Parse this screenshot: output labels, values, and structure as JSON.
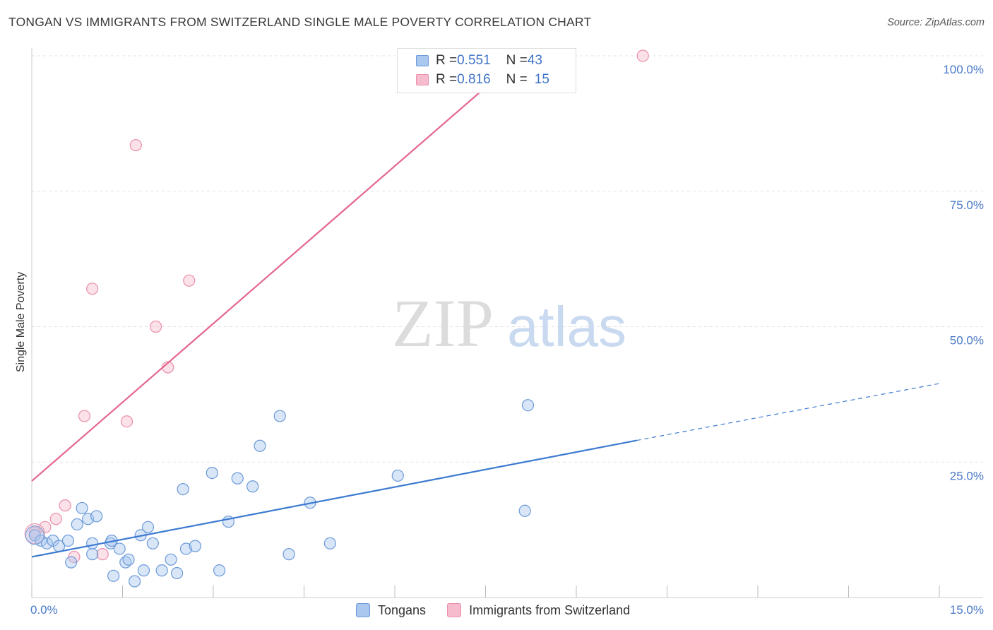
{
  "title": "TONGAN VS IMMIGRANTS FROM SWITZERLAND SINGLE MALE POVERTY CORRELATION CHART",
  "source": "Source: ZipAtlas.com",
  "watermark": {
    "zip": "ZIP",
    "atlas": "atlas"
  },
  "legend_top": {
    "rows": [
      {
        "r_label": "R = ",
        "r_value": "0.551",
        "n_label": "N = ",
        "n_value": "43"
      },
      {
        "r_label": "R = ",
        "r_value": "0.816",
        "n_label": "N = ",
        "n_value": "15"
      }
    ]
  },
  "legend_bottom": [
    {
      "label": "Tongans"
    },
    {
      "label": "Immigrants from Switzerland"
    }
  ],
  "colors": {
    "blue_fill": "#a9c7ef",
    "blue_stroke": "#6c9ad8",
    "blue_line": "#3c7ad1",
    "pink_fill": "#f6bccd",
    "pink_stroke": "#eb8fab",
    "pink_line": "#e4668e",
    "tick": "#4a7ac9",
    "grid": "#e3e3e3"
  },
  "chart_data": {
    "type": "scatter",
    "title": "TONGAN VS IMMIGRANTS FROM SWITZERLAND SINGLE MALE POVERTY CORRELATION CHART",
    "xlabel": "",
    "ylabel": "Single Male Poverty",
    "xlim": [
      0,
      15
    ],
    "ylim": [
      0,
      100
    ],
    "x_ticks": [
      "0.0%",
      "15.0%"
    ],
    "y_ticks": [
      "25.0%",
      "50.0%",
      "75.0%",
      "100.0%"
    ],
    "y_tick_values": [
      25,
      50,
      75,
      100
    ],
    "grid": true,
    "series": [
      {
        "name": "Tongans",
        "R": 0.551,
        "N": 43,
        "points": [
          [
            0.05,
            11.5
          ],
          [
            0.15,
            10.5
          ],
          [
            0.25,
            10.0
          ],
          [
            0.35,
            10.5
          ],
          [
            0.45,
            9.5
          ],
          [
            0.6,
            10.5
          ],
          [
            0.65,
            6.5
          ],
          [
            0.75,
            13.5
          ],
          [
            0.83,
            16.5
          ],
          [
            0.93,
            14.5
          ],
          [
            1.07,
            15.0
          ],
          [
            1.0,
            8.0
          ],
          [
            1.0,
            10.0
          ],
          [
            1.3,
            10.0
          ],
          [
            1.32,
            10.5
          ],
          [
            1.35,
            4.0
          ],
          [
            1.45,
            9.0
          ],
          [
            1.55,
            6.5
          ],
          [
            1.6,
            7.0
          ],
          [
            1.7,
            3.0
          ],
          [
            1.8,
            11.5
          ],
          [
            1.85,
            5.0
          ],
          [
            1.92,
            13.0
          ],
          [
            2.0,
            10.0
          ],
          [
            2.15,
            5.0
          ],
          [
            2.3,
            7.0
          ],
          [
            2.4,
            4.5
          ],
          [
            2.5,
            20.0
          ],
          [
            2.55,
            9.0
          ],
          [
            2.7,
            9.5
          ],
          [
            2.98,
            23.0
          ],
          [
            3.1,
            5.0
          ],
          [
            3.25,
            14.0
          ],
          [
            3.4,
            22.0
          ],
          [
            3.65,
            20.5
          ],
          [
            3.77,
            28.0
          ],
          [
            4.1,
            33.5
          ],
          [
            4.25,
            8.0
          ],
          [
            4.6,
            17.5
          ],
          [
            4.93,
            10.0
          ],
          [
            6.05,
            22.5
          ],
          [
            8.15,
            16.0
          ],
          [
            8.2,
            35.5
          ]
        ]
      },
      {
        "name": "Immigrants from Switzerland",
        "R": 0.816,
        "N": 15,
        "points": [
          [
            0.05,
            12.0
          ],
          [
            0.22,
            13.0
          ],
          [
            0.4,
            14.5
          ],
          [
            0.55,
            17.0
          ],
          [
            0.7,
            7.5
          ],
          [
            0.87,
            33.5
          ],
          [
            1.0,
            57.0
          ],
          [
            1.17,
            8.0
          ],
          [
            1.57,
            32.5
          ],
          [
            1.72,
            83.5
          ],
          [
            2.05,
            50.0
          ],
          [
            2.25,
            42.5
          ],
          [
            2.6,
            58.5
          ],
          [
            8.05,
            100.0
          ],
          [
            10.1,
            100.0
          ]
        ]
      }
    ],
    "trend_lines": [
      {
        "series": "Tongans",
        "x": [
          0,
          10.0
        ],
        "y": [
          7.5,
          29.0
        ],
        "dashed_extension_to": [
          15.0,
          39.5
        ]
      },
      {
        "series": "Immigrants from Switzerland",
        "x": [
          0,
          8.1
        ],
        "y": [
          21.5,
          100.0
        ]
      }
    ]
  }
}
